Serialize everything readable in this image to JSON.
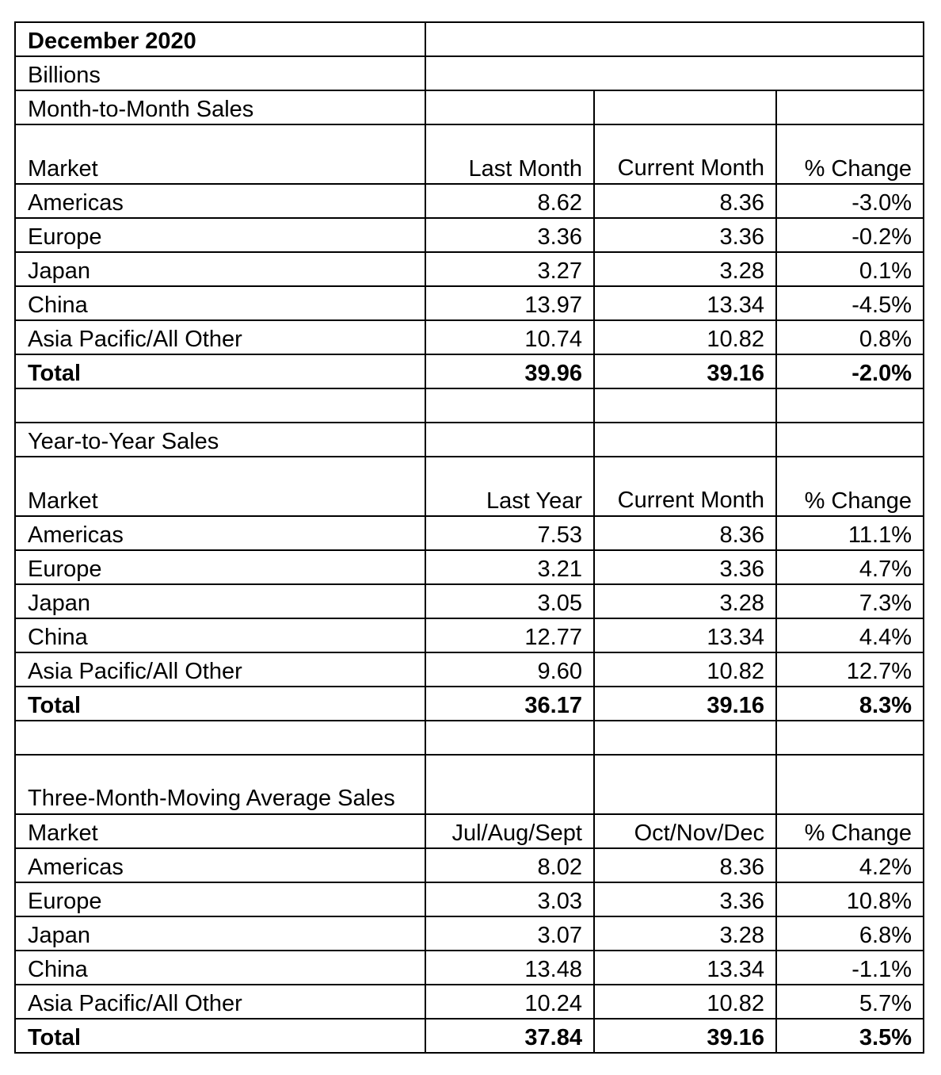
{
  "title": "December 2020",
  "units": "Billions",
  "sections": [
    {
      "name": "Month-to-Month Sales",
      "headers": [
        "Market",
        "Last Month",
        "Current Month",
        "% Change"
      ],
      "rows": [
        [
          "Americas",
          "8.62",
          "8.36",
          "-3.0%"
        ],
        [
          "Europe",
          "3.36",
          "3.36",
          "-0.2%"
        ],
        [
          "Japan",
          "3.27",
          "3.28",
          "0.1%"
        ],
        [
          "China",
          "13.97",
          "13.34",
          "-4.5%"
        ],
        [
          "Asia Pacific/All Other",
          "10.74",
          "10.82",
          "0.8%"
        ]
      ],
      "total": [
        "Total",
        "39.96",
        "39.16",
        "-2.0%"
      ]
    },
    {
      "name": "Year-to-Year Sales",
      "headers": [
        "Market",
        "Last Year",
        "Current Month",
        "% Change"
      ],
      "rows": [
        [
          "Americas",
          "7.53",
          "8.36",
          "11.1%"
        ],
        [
          "Europe",
          "3.21",
          "3.36",
          "4.7%"
        ],
        [
          "Japan",
          "3.05",
          "3.28",
          "7.3%"
        ],
        [
          "China",
          "12.77",
          "13.34",
          "4.4%"
        ],
        [
          "Asia Pacific/All Other",
          "9.60",
          "10.82",
          "12.7%"
        ]
      ],
      "total": [
        "Total",
        "36.17",
        "39.16",
        "8.3%"
      ]
    },
    {
      "name": "Three-Month-Moving Average Sales",
      "headers": [
        "Market",
        "Jul/Aug/Sept",
        "Oct/Nov/Dec",
        "% Change"
      ],
      "rows": [
        [
          "Americas",
          "8.02",
          "8.36",
          "4.2%"
        ],
        [
          "Europe",
          "3.03",
          "3.36",
          "10.8%"
        ],
        [
          "Japan",
          "3.07",
          "3.28",
          "6.8%"
        ],
        [
          "China",
          "13.48",
          "13.34",
          "-1.1%"
        ],
        [
          "Asia Pacific/All Other",
          "10.24",
          "10.82",
          "5.7%"
        ]
      ],
      "total": [
        "Total",
        "37.84",
        "39.16",
        "3.5%"
      ]
    }
  ]
}
